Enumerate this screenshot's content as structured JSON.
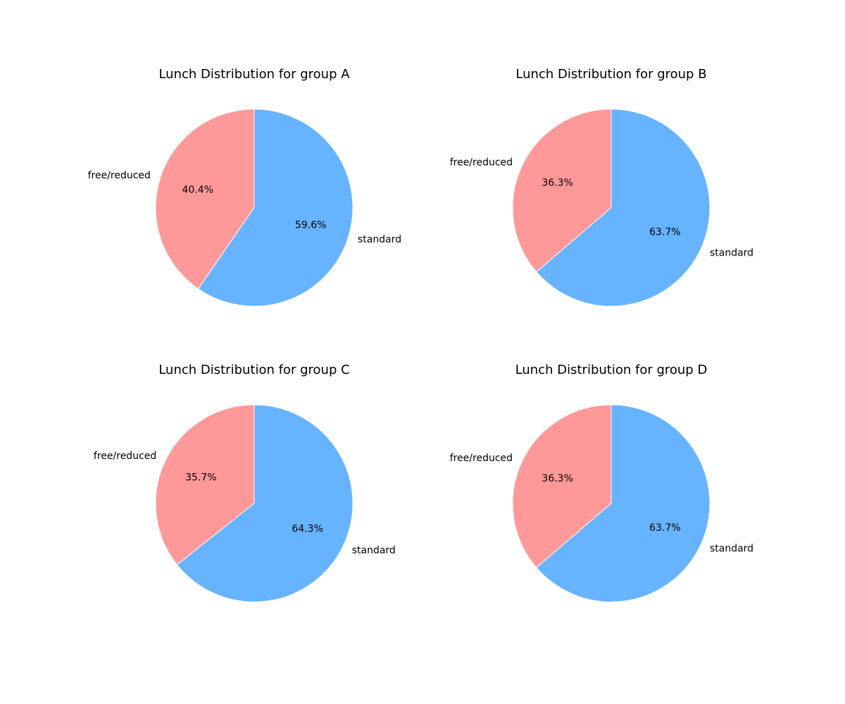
{
  "chart_data": [
    {
      "type": "pie",
      "title": "Lunch Distribution for group A",
      "categories": [
        "free/reduced",
        "standard"
      ],
      "values": [
        40.4,
        59.6
      ],
      "labels": [
        "40.4%",
        "59.6%"
      ],
      "colors": [
        "#ff9999",
        "#66b3ff"
      ]
    },
    {
      "type": "pie",
      "title": "Lunch Distribution for group B",
      "categories": [
        "free/reduced",
        "standard"
      ],
      "values": [
        36.3,
        63.7
      ],
      "labels": [
        "36.3%",
        "63.7%"
      ],
      "colors": [
        "#ff9999",
        "#66b3ff"
      ]
    },
    {
      "type": "pie",
      "title": "Lunch Distribution for group C",
      "categories": [
        "free/reduced",
        "standard"
      ],
      "values": [
        35.7,
        64.3
      ],
      "labels": [
        "35.7%",
        "64.3%"
      ],
      "colors": [
        "#ff9999",
        "#66b3ff"
      ]
    },
    {
      "type": "pie",
      "title": "Lunch Distribution for group D",
      "categories": [
        "free/reduced",
        "standard"
      ],
      "values": [
        36.3,
        63.7
      ],
      "labels": [
        "36.3%",
        "63.7%"
      ],
      "colors": [
        "#ff9999",
        "#66b3ff"
      ]
    }
  ]
}
